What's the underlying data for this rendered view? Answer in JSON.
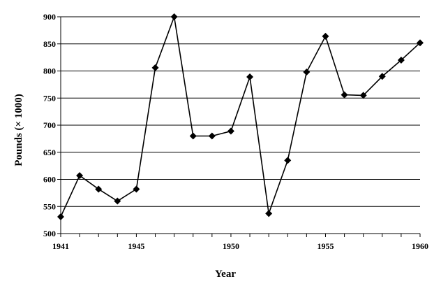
{
  "chart_data": {
    "type": "line",
    "title": "",
    "xlabel": "Year",
    "ylabel": "Pounds (× 1000)",
    "xlim": [
      1941,
      1960
    ],
    "ylim": [
      500,
      900
    ],
    "xticks": [
      1941,
      1945,
      1950,
      1955,
      1960
    ],
    "yticks": [
      500,
      550,
      600,
      650,
      700,
      750,
      800,
      850,
      900
    ],
    "grid": "horizontal",
    "legend": "none",
    "colors": {
      "line": "#000000",
      "grid": "#000000",
      "marker": "#000000"
    },
    "marker": "diamond",
    "series": [
      {
        "x": [
          1941,
          1942,
          1943,
          1944,
          1945,
          1946,
          1947,
          1948,
          1949,
          1950,
          1951,
          1952,
          1953,
          1954,
          1955,
          1956,
          1957,
          1958,
          1959,
          1960
        ],
        "values": [
          531,
          607,
          582,
          560,
          582,
          806,
          900,
          680,
          680,
          689,
          789,
          537,
          635,
          798,
          864,
          756,
          755,
          790,
          820,
          852
        ]
      }
    ]
  }
}
